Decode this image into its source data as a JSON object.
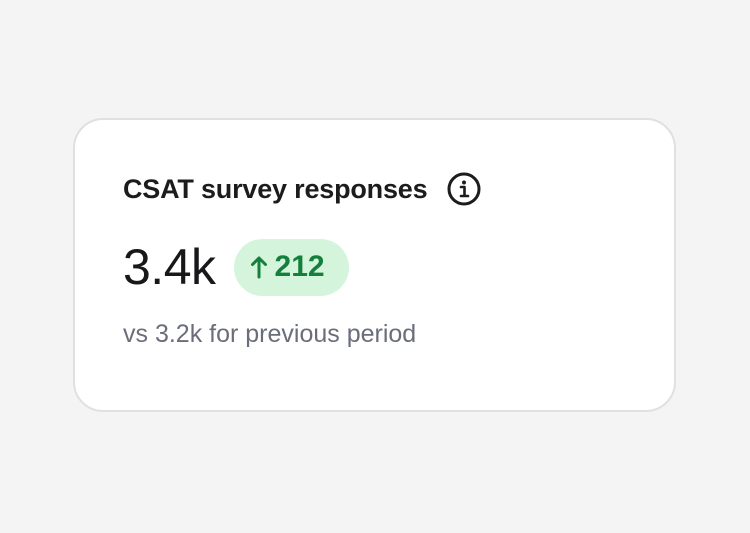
{
  "card": {
    "title": "CSAT survey responses",
    "value": "3.4k",
    "change": "212",
    "comparison": "vs 3.2k for previous period"
  }
}
